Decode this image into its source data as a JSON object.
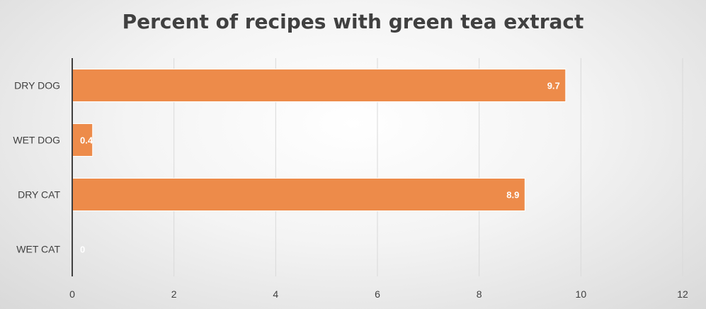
{
  "chart_data": {
    "type": "bar",
    "orientation": "horizontal",
    "title": "Percent of recipes with green tea extract",
    "categories": [
      "DRY DOG",
      "WET DOG",
      "DRY CAT",
      "WET CAT"
    ],
    "values": [
      9.7,
      0.4,
      8.9,
      0
    ],
    "data_labels": [
      "9.7",
      "0.4",
      "8.9",
      "0"
    ],
    "xlim": [
      0,
      12
    ],
    "x_ticks": [
      0,
      2,
      4,
      6,
      8,
      10,
      12
    ],
    "xlabel": "",
    "ylabel": "",
    "grid": true,
    "legend": "none",
    "bar_color": "#ed8b4a",
    "bar_edge_color": "#ffffff",
    "grid_color": "#d9d9d9",
    "axis_color": "#404040",
    "label_color": "#404040",
    "data_label_color": "#ffffff"
  }
}
